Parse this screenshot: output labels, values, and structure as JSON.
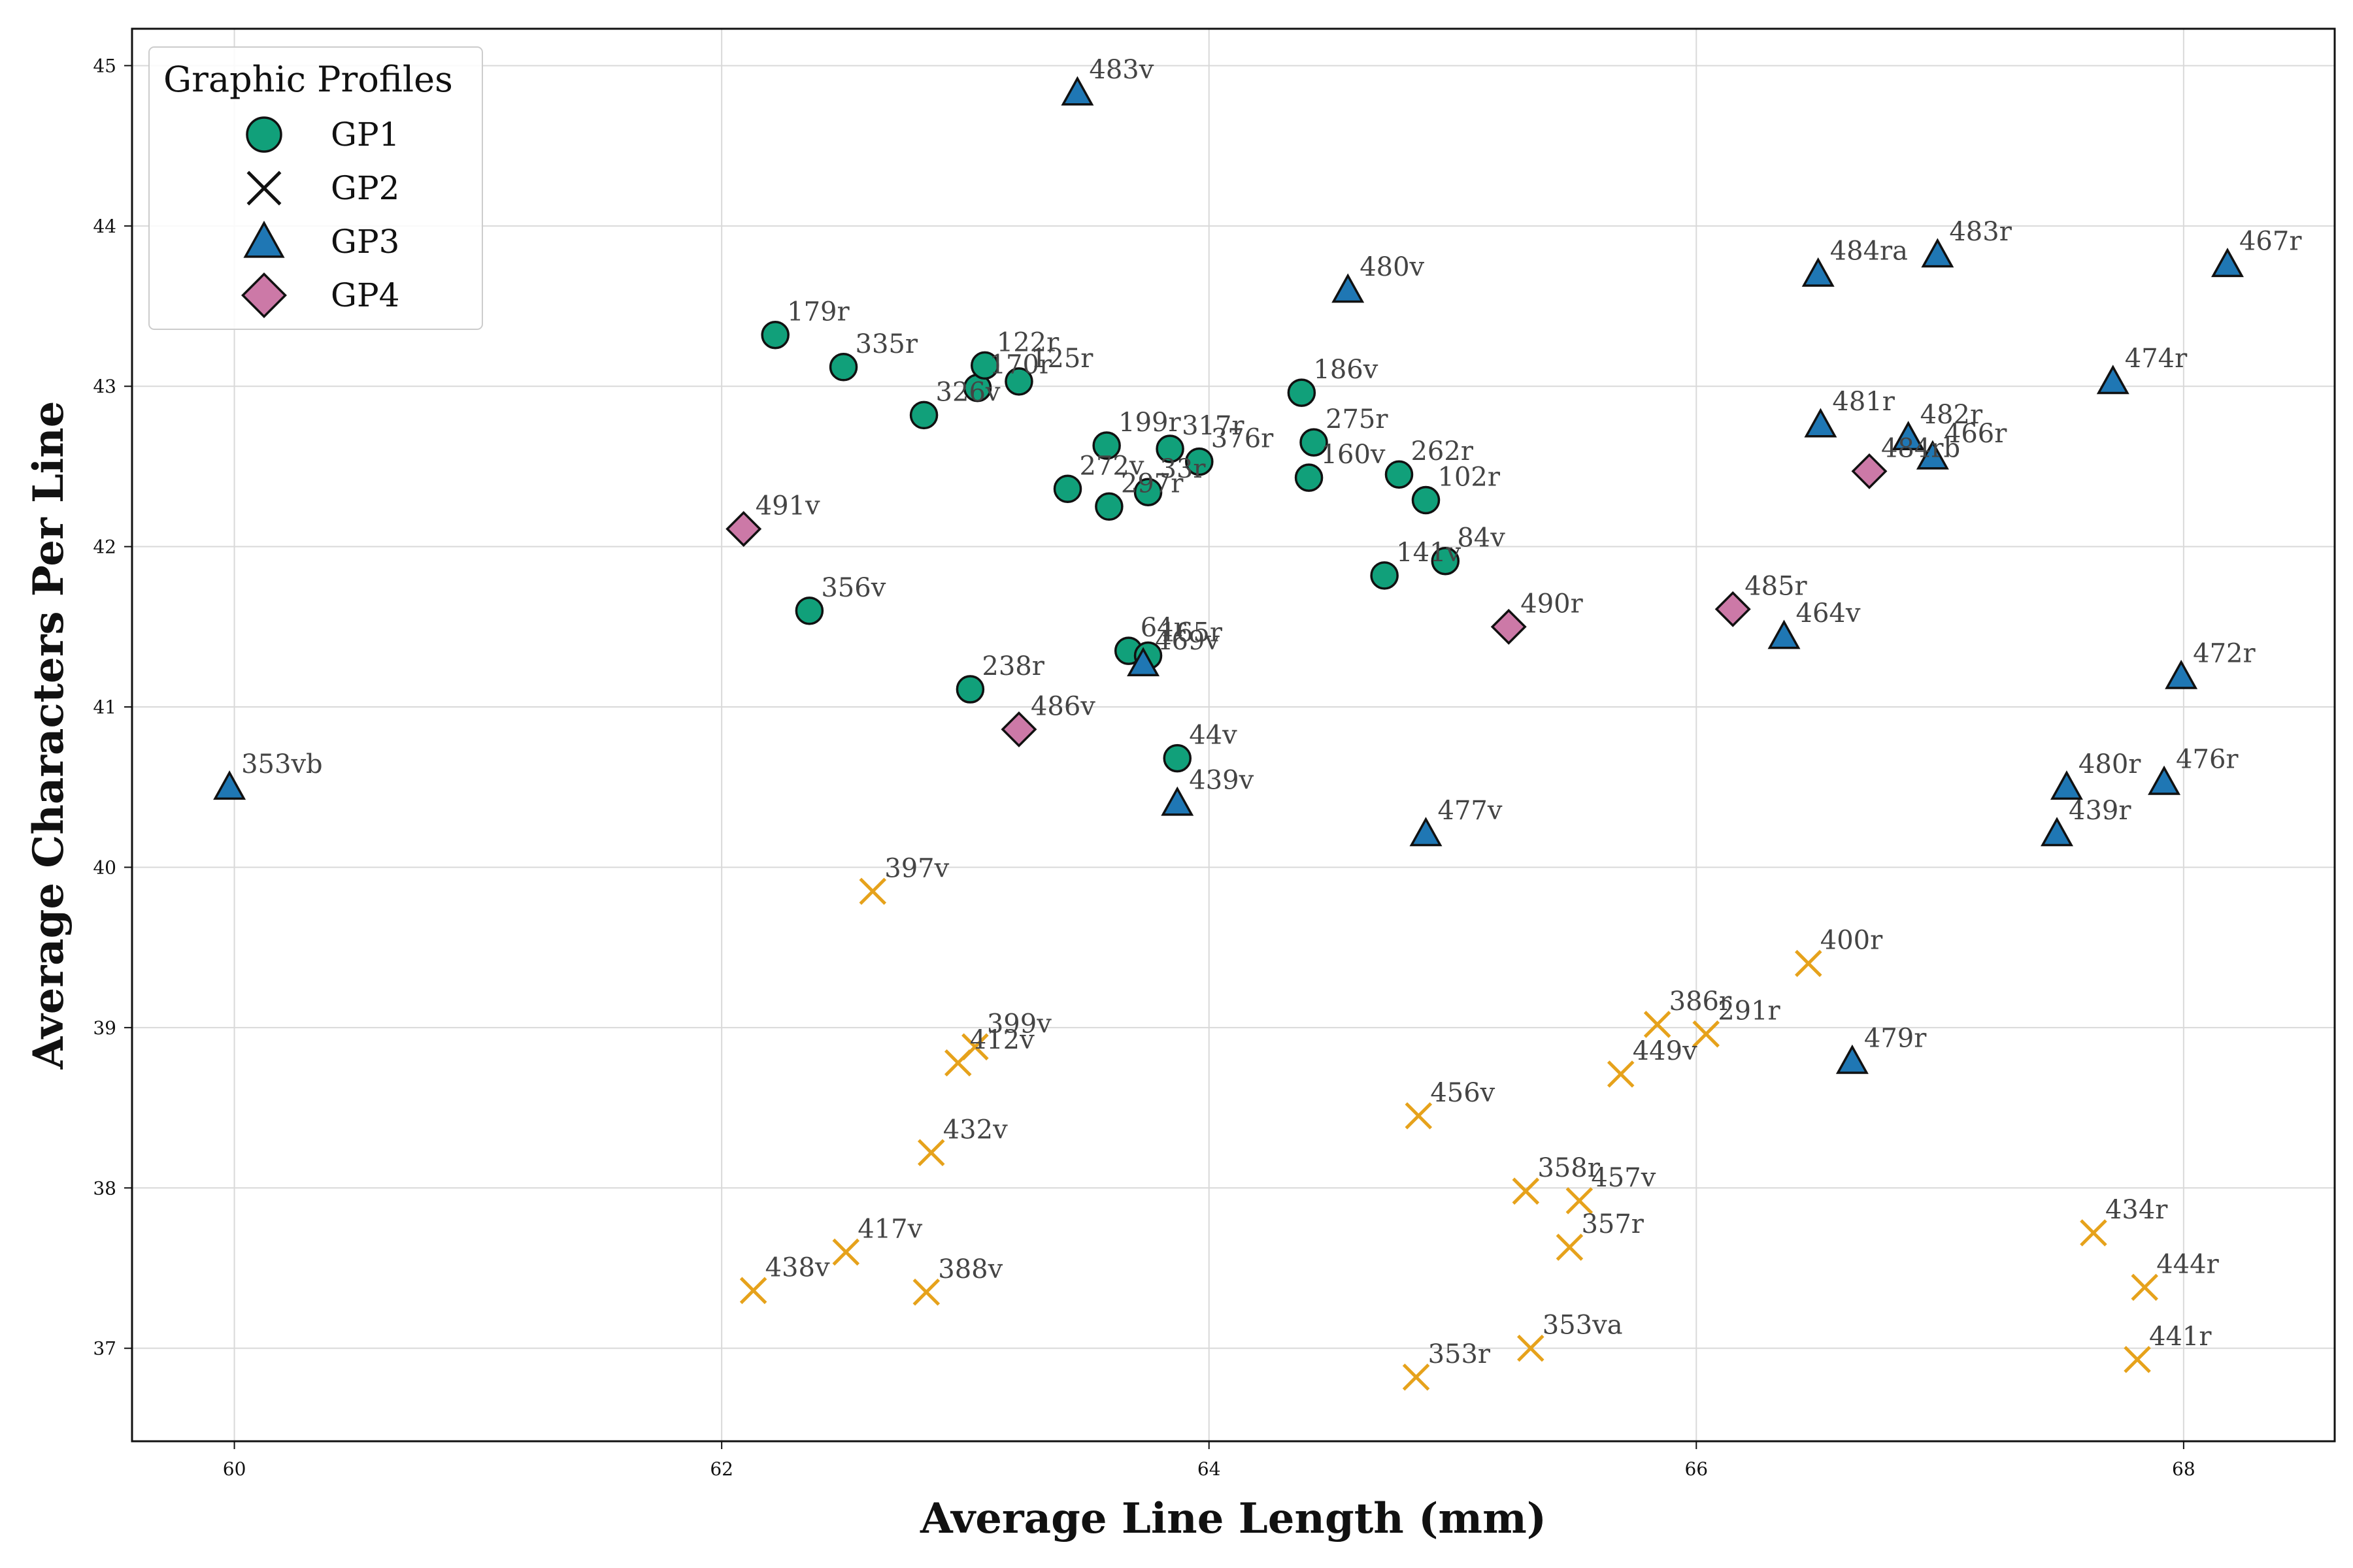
{
  "chart_data": {
    "type": "scatter",
    "xlabel": "Average Line Length (mm)",
    "ylabel": "Average Characters Per Line",
    "xlim": [
      59.58,
      68.62
    ],
    "ylim": [
      36.42,
      45.23
    ],
    "xticks": [
      60,
      62,
      64,
      66,
      68
    ],
    "yticks": [
      37,
      38,
      39,
      40,
      41,
      42,
      43,
      44,
      45
    ],
    "grid": true,
    "legend": {
      "title": "Graphic Profiles",
      "placement": "top-left"
    },
    "series": [
      {
        "name": "GP1",
        "marker": "circle",
        "color": "#11a07a",
        "points": [
          {
            "label": "179r",
            "x": 62.22,
            "y": 43.32
          },
          {
            "label": "335r",
            "x": 62.5,
            "y": 43.12
          },
          {
            "label": "326v",
            "x": 62.83,
            "y": 42.82
          },
          {
            "label": "170r",
            "x": 63.05,
            "y": 42.99
          },
          {
            "label": "122r",
            "x": 63.08,
            "y": 43.13
          },
          {
            "label": "125r",
            "x": 63.22,
            "y": 43.03
          },
          {
            "label": "199r",
            "x": 63.58,
            "y": 42.63
          },
          {
            "label": "272v",
            "x": 63.42,
            "y": 42.36
          },
          {
            "label": "297r",
            "x": 63.59,
            "y": 42.25
          },
          {
            "label": "33r",
            "x": 63.75,
            "y": 42.34
          },
          {
            "label": "317r",
            "x": 63.84,
            "y": 42.61
          },
          {
            "label": "376r",
            "x": 63.96,
            "y": 42.53
          },
          {
            "label": "186v",
            "x": 64.38,
            "y": 42.96
          },
          {
            "label": "275r",
            "x": 64.43,
            "y": 42.65
          },
          {
            "label": "160v",
            "x": 64.41,
            "y": 42.43
          },
          {
            "label": "262r",
            "x": 64.78,
            "y": 42.45
          },
          {
            "label": "102r",
            "x": 64.89,
            "y": 42.29
          },
          {
            "label": "141v",
            "x": 64.72,
            "y": 41.82
          },
          {
            "label": "84v",
            "x": 64.97,
            "y": 41.91
          },
          {
            "label": "356v",
            "x": 62.36,
            "y": 41.6
          },
          {
            "label": "64r",
            "x": 63.67,
            "y": 41.35
          },
          {
            "label": "165r",
            "x": 63.75,
            "y": 41.32
          },
          {
            "label": "238r",
            "x": 63.02,
            "y": 41.11
          },
          {
            "label": "44v",
            "x": 63.87,
            "y": 40.68
          }
        ]
      },
      {
        "name": "GP2",
        "marker": "cross",
        "color": "#e6a21b",
        "points": [
          {
            "label": "397v",
            "x": 62.62,
            "y": 39.85
          },
          {
            "label": "399v",
            "x": 63.04,
            "y": 38.88
          },
          {
            "label": "412v",
            "x": 62.97,
            "y": 38.78
          },
          {
            "label": "432v",
            "x": 62.86,
            "y": 38.22
          },
          {
            "label": "417v",
            "x": 62.51,
            "y": 37.6
          },
          {
            "label": "438v",
            "x": 62.13,
            "y": 37.36
          },
          {
            "label": "388v",
            "x": 62.84,
            "y": 37.35
          },
          {
            "label": "456v",
            "x": 64.86,
            "y": 38.45
          },
          {
            "label": "358r",
            "x": 65.3,
            "y": 37.98
          },
          {
            "label": "457v",
            "x": 65.52,
            "y": 37.92
          },
          {
            "label": "357r",
            "x": 65.48,
            "y": 37.63
          },
          {
            "label": "353va",
            "x": 65.32,
            "y": 37.0
          },
          {
            "label": "353r",
            "x": 64.85,
            "y": 36.82
          },
          {
            "label": "386r",
            "x": 65.84,
            "y": 39.02
          },
          {
            "label": "291r",
            "x": 66.04,
            "y": 38.96
          },
          {
            "label": "449v",
            "x": 65.69,
            "y": 38.71
          },
          {
            "label": "400r",
            "x": 66.46,
            "y": 39.4
          },
          {
            "label": "434r",
            "x": 67.63,
            "y": 37.72
          },
          {
            "label": "444r",
            "x": 67.84,
            "y": 37.38
          },
          {
            "label": "441r",
            "x": 67.81,
            "y": 36.93
          }
        ]
      },
      {
        "name": "GP3",
        "marker": "triangle",
        "color": "#1f77b4",
        "points": [
          {
            "label": "483v",
            "x": 63.46,
            "y": 44.83
          },
          {
            "label": "480v",
            "x": 64.57,
            "y": 43.6
          },
          {
            "label": "484ra",
            "x": 66.5,
            "y": 43.7
          },
          {
            "label": "483r",
            "x": 66.99,
            "y": 43.82
          },
          {
            "label": "467r",
            "x": 68.18,
            "y": 43.76
          },
          {
            "label": "474r",
            "x": 67.71,
            "y": 43.03
          },
          {
            "label": "481r",
            "x": 66.51,
            "y": 42.76
          },
          {
            "label": "482r",
            "x": 66.87,
            "y": 42.68
          },
          {
            "label": "466r",
            "x": 66.97,
            "y": 42.56
          },
          {
            "label": "464v",
            "x": 66.36,
            "y": 41.44
          },
          {
            "label": "469v",
            "x": 63.73,
            "y": 41.27
          },
          {
            "label": "439v",
            "x": 63.87,
            "y": 40.4
          },
          {
            "label": "477v",
            "x": 64.89,
            "y": 40.21
          },
          {
            "label": "353vb",
            "x": 59.98,
            "y": 40.5
          },
          {
            "label": "472r",
            "x": 67.99,
            "y": 41.19
          },
          {
            "label": "480r",
            "x": 67.52,
            "y": 40.5
          },
          {
            "label": "476r",
            "x": 67.92,
            "y": 40.53
          },
          {
            "label": "439r",
            "x": 67.48,
            "y": 40.21
          },
          {
            "label": "479r",
            "x": 66.64,
            "y": 38.79
          }
        ]
      },
      {
        "name": "GP4",
        "marker": "diamond",
        "color": "#cc79a7",
        "points": [
          {
            "label": "491v",
            "x": 62.09,
            "y": 42.11
          },
          {
            "label": "486v",
            "x": 63.22,
            "y": 40.86
          },
          {
            "label": "490r",
            "x": 65.23,
            "y": 41.5
          },
          {
            "label": "485r",
            "x": 66.15,
            "y": 41.61
          },
          {
            "label": "484rb",
            "x": 66.71,
            "y": 42.47
          }
        ]
      }
    ]
  }
}
